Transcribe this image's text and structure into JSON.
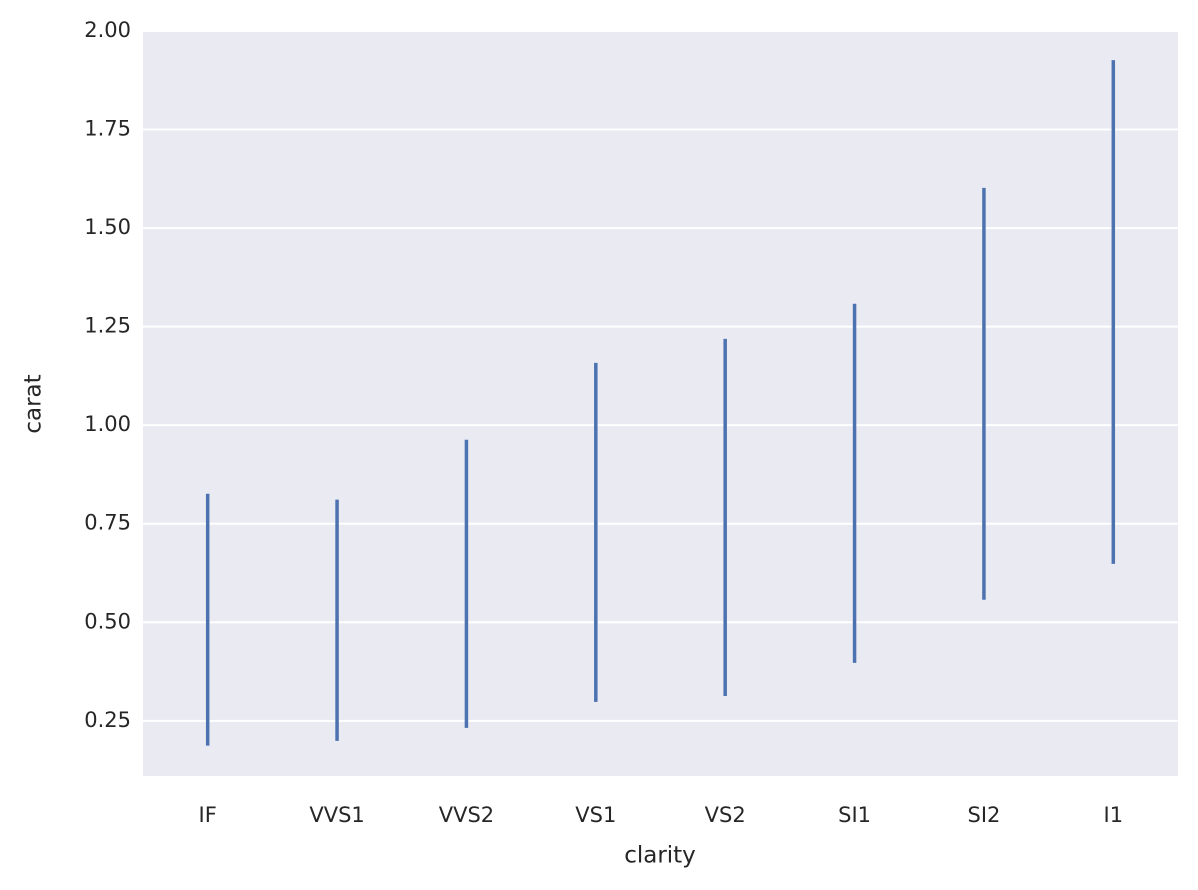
{
  "chart_data": {
    "type": "range",
    "x_label": "clarity",
    "y_label": "carat",
    "categories": [
      "IF",
      "VVS1",
      "VVS2",
      "VS1",
      "VS2",
      "SI1",
      "SI2",
      "I1"
    ],
    "low": [
      0.187,
      0.199,
      0.232,
      0.298,
      0.313,
      0.397,
      0.557,
      0.648
    ],
    "high": [
      0.826,
      0.811,
      0.963,
      1.158,
      1.219,
      1.308,
      1.602,
      1.926
    ],
    "color": "#4c72b0",
    "ylim": [
      0.11,
      2.0
    ],
    "yticks": [
      0.25,
      {
        "value": 0.5,
        "label": "0.50"
      },
      0.75,
      {
        "value": 1.0,
        "label": "1.00"
      },
      1.25,
      {
        "value": 1.5,
        "label": "1.50"
      },
      1.75,
      {
        "value": 2.0,
        "label": "2.00"
      }
    ],
    "grid": true,
    "background": "#eaeaf2"
  }
}
